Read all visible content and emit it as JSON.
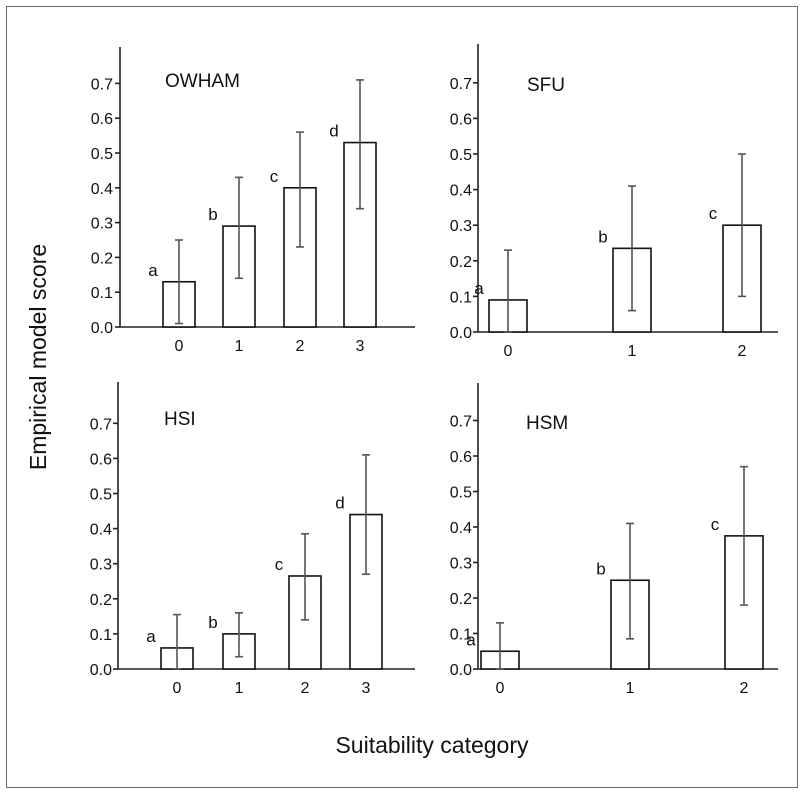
{
  "figure": {
    "ylabel": "Empirical model score",
    "xlabel": "Suitability category"
  },
  "chart_data": [
    {
      "type": "bar",
      "title": "OWHAM",
      "categories": [
        "0",
        "1",
        "2",
        "3"
      ],
      "values": [
        0.13,
        0.29,
        0.4,
        0.53
      ],
      "error_low": [
        0.01,
        0.14,
        0.23,
        0.34
      ],
      "error_high": [
        0.25,
        0.43,
        0.56,
        0.71
      ],
      "letters": [
        "a",
        "b",
        "c",
        "d"
      ],
      "ylim": [
        0,
        0.8
      ],
      "yticks": [
        "0.0",
        "0.1",
        "0.2",
        "0.3",
        "0.4",
        "0.5",
        "0.6",
        "0.7"
      ]
    },
    {
      "type": "bar",
      "title": "SFU",
      "categories": [
        "0",
        "1",
        "2"
      ],
      "values": [
        0.09,
        0.235,
        0.3
      ],
      "error_low": [
        0.0,
        0.06,
        0.1
      ],
      "error_high": [
        0.23,
        0.41,
        0.5
      ],
      "letters": [
        "a",
        "b",
        "c"
      ],
      "ylim": [
        0,
        0.8
      ],
      "yticks": [
        "0.0",
        "0.1",
        "0.2",
        "0.3",
        "0.4",
        "0.5",
        "0.6",
        "0.7"
      ]
    },
    {
      "type": "bar",
      "title": "HSI",
      "categories": [
        "0",
        "1",
        "2",
        "3"
      ],
      "values": [
        0.06,
        0.1,
        0.265,
        0.44
      ],
      "error_low": [
        0.0,
        0.035,
        0.14,
        0.27
      ],
      "error_high": [
        0.155,
        0.16,
        0.385,
        0.61
      ],
      "letters": [
        "a",
        "b",
        "c",
        "d"
      ],
      "ylim": [
        0,
        0.8
      ],
      "yticks": [
        "0.0",
        "0.1",
        "0.2",
        "0.3",
        "0.4",
        "0.5",
        "0.6",
        "0.7"
      ]
    },
    {
      "type": "bar",
      "title": "HSM",
      "categories": [
        "0",
        "1",
        "2"
      ],
      "values": [
        0.05,
        0.25,
        0.375
      ],
      "error_low": [
        0.0,
        0.085,
        0.18
      ],
      "error_high": [
        0.13,
        0.41,
        0.57
      ],
      "letters": [
        "a",
        "b",
        "c"
      ],
      "ylim": [
        0,
        0.8
      ],
      "yticks": [
        "0.0",
        "0.1",
        "0.2",
        "0.3",
        "0.4",
        "0.5",
        "0.6",
        "0.7"
      ]
    }
  ]
}
